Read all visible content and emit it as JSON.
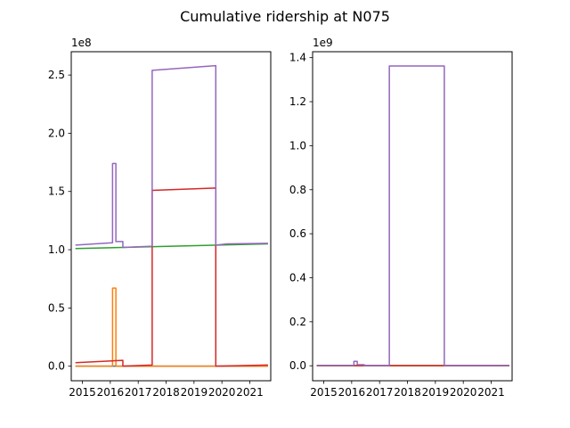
{
  "figure": {
    "title": "Cumulative ridership at N075"
  },
  "colors": {
    "blue": "#1f77b4",
    "orange": "#ff7f0e",
    "green": "#2ca02c",
    "red": "#d62728",
    "purple": "#9467bd"
  },
  "chart_data": [
    {
      "type": "line",
      "x_axis": "date",
      "xlim": [
        2014.6,
        2021.75
      ],
      "ylim": [
        -12500000,
        270000000
      ],
      "offset_text": "1e8",
      "x_ticks": [
        2015,
        2016,
        2017,
        2018,
        2019,
        2020,
        2021
      ],
      "x_tick_labels": [
        "2015",
        "2016",
        "2017",
        "2018",
        "2019",
        "2020",
        "2021"
      ],
      "y_ticks": [
        0,
        50000000,
        100000000,
        150000000,
        200000000,
        250000000
      ],
      "y_tick_labels": [
        "0.0",
        "0.5",
        "1.0",
        "1.5",
        "2.0",
        "2.5"
      ],
      "grid": false,
      "series": [
        {
          "color": "blue",
          "points": [
            [
              2014.75,
              0
            ],
            [
              2021.65,
              0
            ]
          ]
        },
        {
          "color": "orange",
          "points": [
            [
              2014.75,
              0
            ],
            [
              2016.08,
              0
            ],
            [
              2016.08,
              67000000
            ],
            [
              2016.2,
              67000000
            ],
            [
              2016.2,
              0
            ],
            [
              2021.65,
              0
            ]
          ]
        },
        {
          "color": "green",
          "points": [
            [
              2014.75,
              101000000
            ],
            [
              2021.65,
              105000000
            ]
          ]
        },
        {
          "color": "red",
          "points": [
            [
              2014.75,
              3000000
            ],
            [
              2016.45,
              5000000
            ],
            [
              2016.45,
              0
            ],
            [
              2017.5,
              1000000
            ],
            [
              2017.5,
              151000000
            ],
            [
              2019.78,
              153000000
            ],
            [
              2019.78,
              0
            ],
            [
              2021.65,
              1000000
            ]
          ]
        },
        {
          "color": "purple",
          "points": [
            [
              2014.75,
              104000000
            ],
            [
              2016.08,
              106000000
            ],
            [
              2016.08,
              174000000
            ],
            [
              2016.2,
              174000000
            ],
            [
              2016.2,
              107000000
            ],
            [
              2016.45,
              107000000
            ],
            [
              2016.45,
              102000000
            ],
            [
              2017.5,
              103000000
            ],
            [
              2017.5,
              254000000
            ],
            [
              2019.78,
              258000000
            ],
            [
              2019.78,
              104000000
            ],
            [
              2020.2,
              105000000
            ],
            [
              2021.65,
              105500000
            ]
          ]
        }
      ]
    },
    {
      "type": "line",
      "x_axis": "date",
      "xlim": [
        2014.6,
        2021.75
      ],
      "ylim": [
        -68000000,
        1427000000
      ],
      "offset_text": "1e9",
      "x_ticks": [
        2015,
        2016,
        2017,
        2018,
        2019,
        2020,
        2021
      ],
      "x_tick_labels": [
        "2015",
        "2016",
        "2017",
        "2018",
        "2019",
        "2020",
        "2021"
      ],
      "y_ticks": [
        0,
        200000000,
        400000000,
        600000000,
        800000000,
        1000000000,
        1200000000,
        1400000000
      ],
      "y_tick_labels": [
        "0.0",
        "0.2",
        "0.4",
        "0.6",
        "0.8",
        "1.0",
        "1.2",
        "1.4"
      ],
      "grid": false,
      "series": [
        {
          "color": "blue",
          "points": [
            [
              2014.75,
              0
            ],
            [
              2021.65,
              0
            ]
          ]
        },
        {
          "color": "orange",
          "points": [
            [
              2014.75,
              0
            ],
            [
              2021.65,
              0
            ]
          ]
        },
        {
          "color": "green",
          "points": [
            [
              2014.75,
              1000000
            ],
            [
              2021.65,
              1000000
            ]
          ]
        },
        {
          "color": "red",
          "points": [
            [
              2014.75,
              1000000
            ],
            [
              2021.65,
              1000000
            ]
          ]
        },
        {
          "color": "purple",
          "points": [
            [
              2014.75,
              2000000
            ],
            [
              2016.08,
              2000000
            ],
            [
              2016.08,
              20000000
            ],
            [
              2016.2,
              20000000
            ],
            [
              2016.2,
              5000000
            ],
            [
              2016.45,
              5000000
            ],
            [
              2016.45,
              1000000
            ],
            [
              2017.35,
              1000000
            ],
            [
              2017.35,
              1362000000
            ],
            [
              2019.32,
              1362000000
            ],
            [
              2019.32,
              1000000
            ],
            [
              2021.65,
              1000000
            ]
          ]
        }
      ]
    }
  ]
}
